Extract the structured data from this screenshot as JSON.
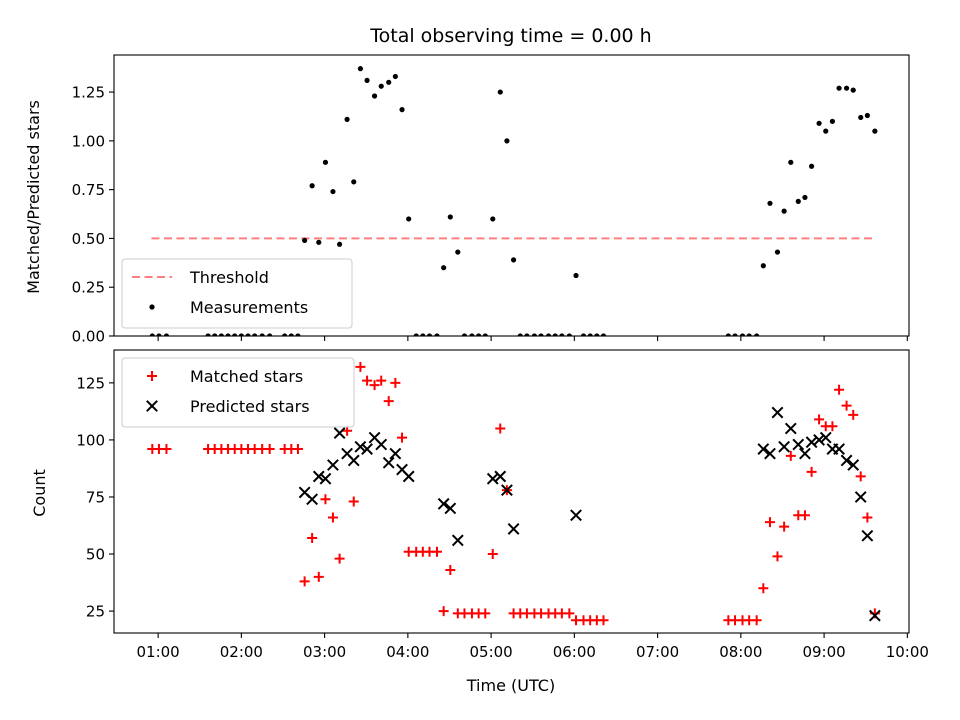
{
  "colors": {
    "background": "#ffffff",
    "axes": "#000000",
    "threshold": "#ff7f7f",
    "measurements": "#000000",
    "matched": "#ff0000",
    "predicted": "#000000"
  },
  "chart_data": [
    {
      "type": "scatter",
      "title": "Total observing time = 0.00 h",
      "xlabel": "",
      "ylabel": "Matched/Predicted stars",
      "xlim": [
        0.47,
        10.02
      ],
      "ylim": [
        0.0,
        1.44
      ],
      "grid": false,
      "x_ticks": [
        1,
        2,
        3,
        4,
        5,
        6,
        7,
        8,
        9,
        10
      ],
      "x_tick_labels_visible": false,
      "y_ticks": [
        0.0,
        0.25,
        0.5,
        0.75,
        1.0,
        1.25
      ],
      "y_tick_labels": [
        "0.00",
        "0.25",
        "0.50",
        "0.75",
        "1.00",
        "1.25"
      ],
      "legend": {
        "position": "lower-left",
        "entries": [
          "Threshold",
          "Measurements"
        ]
      },
      "series": [
        {
          "name": "Threshold",
          "style": "dashed-line",
          "color": "#ff7f7f",
          "x": [
            0.92,
            9.6
          ],
          "y": [
            0.5,
            0.5
          ]
        },
        {
          "name": "Measurements",
          "style": "dot",
          "color": "#000000",
          "x": [
            0.93,
            1.01,
            1.1,
            1.6,
            1.68,
            1.76,
            1.84,
            1.92,
            2.0,
            2.08,
            2.16,
            2.25,
            2.34,
            2.52,
            2.6,
            2.68,
            2.76,
            2.85,
            2.93,
            3.01,
            3.1,
            3.18,
            3.27,
            3.35,
            3.43,
            3.51,
            3.6,
            3.68,
            3.77,
            3.85,
            3.93,
            4.01,
            4.1,
            4.18,
            4.26,
            4.35,
            4.43,
            4.51,
            4.6,
            4.68,
            4.77,
            4.85,
            4.93,
            5.02,
            5.11,
            5.19,
            5.27,
            5.35,
            5.43,
            5.52,
            5.6,
            5.69,
            5.77,
            5.85,
            5.94,
            6.02,
            6.11,
            6.19,
            6.27,
            6.35,
            7.85,
            7.93,
            8.02,
            8.1,
            8.19,
            8.27,
            8.35,
            8.44,
            8.52,
            8.6,
            8.69,
            8.77,
            8.85,
            8.94,
            9.02,
            9.1,
            9.18,
            9.27,
            9.35,
            9.44,
            9.52,
            9.61
          ],
          "y": [
            0.0,
            0.0,
            0.0,
            0.0,
            0.0,
            0.0,
            0.0,
            0.0,
            0.0,
            0.0,
            0.0,
            0.0,
            0.0,
            0.0,
            0.0,
            0.0,
            0.49,
            0.77,
            0.48,
            0.89,
            0.74,
            0.47,
            1.11,
            0.79,
            1.37,
            1.31,
            1.23,
            1.28,
            1.3,
            1.33,
            1.16,
            0.6,
            0.0,
            0.0,
            0.0,
            0.0,
            0.35,
            0.61,
            0.43,
            0.0,
            0.0,
            0.0,
            0.0,
            0.6,
            1.25,
            1.0,
            0.39,
            0.0,
            0.0,
            0.0,
            0.0,
            0.0,
            0.0,
            0.0,
            0.0,
            0.31,
            0.0,
            0.0,
            0.0,
            0.0,
            0.0,
            0.0,
            0.0,
            0.0,
            0.0,
            0.36,
            0.68,
            0.43,
            0.64,
            0.89,
            0.69,
            0.71,
            0.87,
            1.09,
            1.05,
            1.1,
            1.27,
            1.27,
            1.26,
            1.12,
            1.13,
            1.05
          ]
        }
      ]
    },
    {
      "type": "scatter",
      "title": "",
      "xlabel": "Time (UTC)",
      "ylabel": "Count",
      "xlim": [
        0.47,
        10.02
      ],
      "ylim": [
        15.4,
        139.4
      ],
      "grid": false,
      "x_ticks": [
        1,
        2,
        3,
        4,
        5,
        6,
        7,
        8,
        9,
        10
      ],
      "x_tick_labels": [
        "01:00",
        "02:00",
        "03:00",
        "04:00",
        "05:00",
        "06:00",
        "07:00",
        "08:00",
        "09:00",
        "10:00"
      ],
      "y_ticks": [
        25,
        50,
        75,
        100,
        125
      ],
      "y_tick_labels": [
        "25",
        "50",
        "75",
        "100",
        "125"
      ],
      "legend": {
        "position": "upper-left",
        "entries": [
          "Matched stars",
          "Predicted stars"
        ]
      },
      "series": [
        {
          "name": "Matched stars",
          "style": "plus",
          "color": "#ff0000",
          "x": [
            0.93,
            1.01,
            1.1,
            1.6,
            1.68,
            1.76,
            1.84,
            1.92,
            2.0,
            2.08,
            2.16,
            2.25,
            2.34,
            2.52,
            2.6,
            2.68,
            2.76,
            2.85,
            2.93,
            3.01,
            3.1,
            3.18,
            3.27,
            3.35,
            3.43,
            3.51,
            3.6,
            3.68,
            3.77,
            3.85,
            3.93,
            4.01,
            4.1,
            4.18,
            4.26,
            4.35,
            4.43,
            4.51,
            4.6,
            4.68,
            4.77,
            4.85,
            4.93,
            5.02,
            5.11,
            5.19,
            5.27,
            5.35,
            5.43,
            5.52,
            5.6,
            5.69,
            5.77,
            5.85,
            5.94,
            6.02,
            6.11,
            6.19,
            6.27,
            6.35,
            7.85,
            7.93,
            8.02,
            8.1,
            8.19,
            8.27,
            8.35,
            8.44,
            8.52,
            8.6,
            8.69,
            8.77,
            8.85,
            8.94,
            9.02,
            9.1,
            9.18,
            9.27,
            9.35,
            9.44,
            9.52,
            9.61
          ],
          "y": [
            96,
            96,
            96,
            96,
            96,
            96,
            96,
            96,
            96,
            96,
            96,
            96,
            96,
            96,
            96,
            96,
            38,
            57,
            40,
            74,
            66,
            48,
            104,
            73,
            132,
            126,
            124,
            126,
            117,
            125,
            101,
            51,
            51,
            51,
            51,
            51,
            25,
            43,
            24,
            24,
            24,
            24,
            24,
            50,
            105,
            78,
            24,
            24,
            24,
            24,
            24,
            24,
            24,
            24,
            24,
            21,
            21,
            21,
            21,
            21,
            21,
            21,
            21,
            21,
            21,
            35,
            64,
            49,
            62,
            93,
            67,
            67,
            86,
            109,
            106,
            106,
            122,
            115,
            111,
            84,
            66,
            24
          ]
        },
        {
          "name": "Predicted stars",
          "style": "x",
          "color": "#000000",
          "x": [
            2.76,
            2.85,
            2.93,
            3.01,
            3.1,
            3.18,
            3.27,
            3.35,
            3.43,
            3.51,
            3.6,
            3.68,
            3.77,
            3.85,
            3.93,
            4.01,
            4.43,
            4.51,
            4.6,
            5.02,
            5.11,
            5.19,
            5.27,
            6.02,
            8.27,
            8.35,
            8.44,
            8.52,
            8.6,
            8.69,
            8.77,
            8.85,
            8.94,
            9.02,
            9.1,
            9.18,
            9.27,
            9.35,
            9.44,
            9.52,
            9.61
          ],
          "y": [
            77,
            74,
            84,
            83,
            89,
            103,
            94,
            91,
            97,
            96,
            101,
            98,
            90,
            94,
            87,
            84,
            72,
            70,
            56,
            83,
            84,
            78,
            61,
            67,
            96,
            94,
            112,
            97,
            105,
            98,
            94,
            99,
            100,
            101,
            96,
            96,
            91,
            89,
            75,
            58,
            23
          ]
        }
      ]
    }
  ]
}
